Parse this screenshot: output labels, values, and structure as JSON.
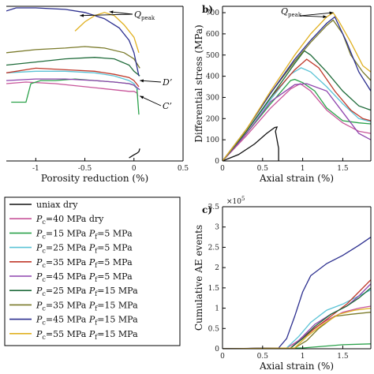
{
  "chart_data": [
    {
      "id": "a",
      "type": "line",
      "panel_label": "",
      "xlabel": "Porosity reduction (%)",
      "ylabel": "",
      "xlim": [
        -1.3,
        0.5
      ],
      "ylim": [
        0,
        1
      ],
      "xticks": [
        -1,
        -0.5,
        0,
        0.5
      ],
      "xtick_labels": [
        "-1",
        "-0.5",
        "0",
        "0.5"
      ],
      "grid": false,
      "annotations": [
        {
          "text": "Q",
          "sub": "peak"
        },
        {
          "text": "D’"
        },
        {
          "text": "C’"
        }
      ],
      "series": [
        {
          "name": "uniax dry",
          "color": "#111111",
          "x": [
            -0.05,
            0,
            0.03,
            0.05,
            0.06
          ],
          "y": [
            0.02,
            0.04,
            0.05,
            0.06,
            0.08
          ]
        },
        {
          "name": "Pc=40 MPa dry",
          "color": "#c8559a",
          "x": [
            -1.3,
            -1.1,
            -0.8,
            -0.5,
            -0.2,
            -0.05,
            0,
            0.03,
            0.04
          ],
          "y": [
            0.5,
            0.51,
            0.5,
            0.48,
            0.46,
            0.45,
            0.45,
            0.44,
            0.42
          ]
        },
        {
          "name": "Pc=15 MPa Pf=5 MPa",
          "color": "#2aa14a",
          "x": [
            -1.25,
            -1.1,
            -1.05,
            -0.95,
            -0.8,
            -0.6,
            -0.4,
            -0.2,
            -0.05,
            0,
            0.03,
            0.05
          ],
          "y": [
            0.38,
            0.38,
            0.5,
            0.52,
            0.52,
            0.53,
            0.52,
            0.51,
            0.5,
            0.49,
            0.47,
            0.3
          ]
        },
        {
          "name": "Pc=25 MPa Pf=5 MPa",
          "color": "#5bc3d6",
          "x": [
            -1.3,
            -1.0,
            -0.7,
            -0.4,
            -0.2,
            -0.05,
            0,
            0.04
          ],
          "y": [
            0.57,
            0.58,
            0.58,
            0.57,
            0.55,
            0.52,
            0.5,
            0.46
          ]
        },
        {
          "name": "Pc=35 MPa Pf=5 MPa",
          "color": "#c0392b",
          "x": [
            -1.3,
            -1.0,
            -0.7,
            -0.4,
            -0.2,
            -0.05,
            0,
            0.05
          ],
          "y": [
            0.57,
            0.6,
            0.59,
            0.58,
            0.56,
            0.54,
            0.52,
            0.48
          ]
        },
        {
          "name": "Pc=45 MPa Pf=5 MPa",
          "color": "#8e44ad",
          "x": [
            -1.3,
            -1.0,
            -0.7,
            -0.4,
            -0.2,
            -0.05,
            0,
            0.06
          ],
          "y": [
            0.52,
            0.53,
            0.53,
            0.52,
            0.51,
            0.5,
            0.49,
            0.46
          ]
        },
        {
          "name": "Pc=25 MPa Pf=15 MPa",
          "color": "#1f6b3a",
          "x": [
            -1.3,
            -1.0,
            -0.7,
            -0.4,
            -0.2,
            -0.05,
            0,
            0.06
          ],
          "y": [
            0.62,
            0.64,
            0.66,
            0.67,
            0.66,
            0.62,
            0.58,
            0.55
          ]
        },
        {
          "name": "Pc=35 MPa Pf=15 MPa",
          "color": "#7a7a2a",
          "x": [
            -1.3,
            -1.0,
            -0.7,
            -0.5,
            -0.3,
            -0.1,
            0,
            0.06
          ],
          "y": [
            0.7,
            0.72,
            0.73,
            0.74,
            0.73,
            0.7,
            0.66,
            0.6
          ]
        },
        {
          "name": "Pc=45 MPa Pf=15 MPa",
          "color": "#2c2f8f",
          "x": [
            -1.3,
            -1.2,
            -1.0,
            -0.7,
            -0.5,
            -0.3,
            -0.15,
            -0.05,
            0,
            0.05
          ],
          "y": [
            0.97,
            0.99,
            0.99,
            0.98,
            0.96,
            0.92,
            0.86,
            0.78,
            0.7,
            0.55
          ]
        },
        {
          "name": "Pc=55 MPa Pf=15 MPa",
          "color": "#e0b020",
          "x": [
            -0.6,
            -0.5,
            -0.4,
            -0.3,
            -0.2,
            -0.1,
            0,
            0.05
          ],
          "y": [
            0.84,
            0.9,
            0.94,
            0.96,
            0.94,
            0.88,
            0.8,
            0.7
          ]
        }
      ]
    },
    {
      "id": "b",
      "type": "line",
      "panel_label": "b)",
      "xlabel": "Axial strain (%)",
      "ylabel": "Differential stress (MPa)",
      "xlim": [
        0,
        1.85
      ],
      "ylim": [
        0,
        730
      ],
      "xticks": [
        0,
        0.5,
        1,
        1.5
      ],
      "xtick_labels": [
        "0",
        "0.5",
        "1",
        "1.5"
      ],
      "yticks": [
        0,
        100,
        200,
        300,
        400,
        500,
        600,
        700
      ],
      "grid": false,
      "annotations": [
        {
          "text": "Q",
          "sub": "peak"
        }
      ],
      "series": [
        {
          "name": "uniax dry",
          "color": "#111111",
          "x": [
            0,
            0.2,
            0.4,
            0.55,
            0.65,
            0.68,
            0.66,
            0.7,
            0.7
          ],
          "y": [
            0,
            30,
            80,
            130,
            158,
            160,
            140,
            60,
            0
          ]
        },
        {
          "name": "Pc=40 MPa dry",
          "color": "#c8559a",
          "x": [
            0,
            0.3,
            0.6,
            0.85,
            0.97,
            1.1,
            1.3,
            1.5,
            1.7,
            1.85
          ],
          "y": [
            0,
            120,
            250,
            340,
            365,
            330,
            240,
            180,
            140,
            130
          ]
        },
        {
          "name": "Pc=15 MPa Pf=5 MPa",
          "color": "#2aa14a",
          "x": [
            0,
            0.3,
            0.6,
            0.85,
            0.9,
            1.0,
            1.15,
            1.3,
            1.5,
            1.7,
            1.85
          ],
          "y": [
            0,
            130,
            270,
            380,
            385,
            370,
            330,
            250,
            190,
            180,
            175
          ]
        },
        {
          "name": "Pc=25 MPa Pf=5 MPa",
          "color": "#5bc3d6",
          "x": [
            0,
            0.3,
            0.6,
            0.85,
            0.98,
            1.1,
            1.3,
            1.5,
            1.7,
            1.85
          ],
          "y": [
            0,
            140,
            290,
            410,
            440,
            420,
            350,
            270,
            200,
            185
          ]
        },
        {
          "name": "Pc=35 MPa Pf=5 MPa",
          "color": "#c0392b",
          "x": [
            0,
            0.3,
            0.6,
            0.9,
            1.05,
            1.2,
            1.4,
            1.6,
            1.75,
            1.85
          ],
          "y": [
            0,
            140,
            300,
            430,
            480,
            440,
            330,
            240,
            200,
            190
          ]
        },
        {
          "name": "Pc=45 MPa Pf=5 MPa",
          "color": "#8e44ad",
          "x": [
            0,
            0.3,
            0.6,
            0.9,
            1.05,
            1.3,
            1.5,
            1.7,
            1.85
          ],
          "y": [
            0,
            130,
            280,
            360,
            365,
            330,
            230,
            130,
            100
          ]
        },
        {
          "name": "Pc=25 MPa Pf=15 MPa",
          "color": "#1f6b3a",
          "x": [
            0,
            0.3,
            0.6,
            0.9,
            1.02,
            1.1,
            1.3,
            1.5,
            1.7,
            1.85
          ],
          "y": [
            0,
            140,
            300,
            460,
            520,
            500,
            420,
            330,
            260,
            240
          ]
        },
        {
          "name": "Pc=35 MPa Pf=15 MPa",
          "color": "#7a7a2a",
          "x": [
            0,
            0.3,
            0.6,
            0.9,
            1.1,
            1.3,
            1.38,
            1.5,
            1.6,
            1.75,
            1.85
          ],
          "y": [
            0,
            150,
            320,
            470,
            560,
            640,
            665,
            600,
            500,
            420,
            380
          ]
        },
        {
          "name": "Pc=45 MPa Pf=15 MPa",
          "color": "#2c2f8f",
          "x": [
            0,
            0.3,
            0.6,
            0.9,
            1.1,
            1.3,
            1.4,
            1.55,
            1.7,
            1.85
          ],
          "y": [
            0,
            150,
            320,
            480,
            570,
            650,
            680,
            560,
            420,
            330
          ]
        },
        {
          "name": "Pc=55 MPa Pf=15 MPa",
          "color": "#e0b020",
          "x": [
            0,
            0.3,
            0.6,
            0.9,
            1.1,
            1.3,
            1.38,
            1.45,
            1.6,
            1.75,
            1.85
          ],
          "y": [
            0,
            150,
            330,
            500,
            600,
            680,
            700,
            660,
            560,
            450,
            420
          ]
        }
      ]
    },
    {
      "id": "c",
      "type": "line",
      "panel_label": "c)",
      "xlabel": "Axial strain (%)",
      "ylabel": "Cumulative AE events",
      "exponent_label": "×10",
      "exponent_power": "5",
      "xlim": [
        0,
        1.85
      ],
      "ylim": [
        0,
        3.5
      ],
      "xticks": [
        0,
        0.5,
        1,
        1.5
      ],
      "xtick_labels": [
        "0",
        "0.5",
        "1",
        "1.5"
      ],
      "yticks": [
        0,
        0.5,
        1,
        1.5,
        2,
        2.5,
        3,
        3.5
      ],
      "grid": false,
      "series": [
        {
          "name": "uniax dry",
          "color": "#111111",
          "x": [
            0,
            0.6,
            0.7
          ],
          "y": [
            0,
            0.01,
            0.01
          ]
        },
        {
          "name": "Pc=40 MPa dry",
          "color": "#c8559a",
          "x": [
            0,
            0.8,
            0.95,
            1.1,
            1.3,
            1.5,
            1.7,
            1.85
          ],
          "y": [
            0,
            0.02,
            0.2,
            0.45,
            0.7,
            0.9,
            1.0,
            1.05
          ]
        },
        {
          "name": "Pc=15 MPa Pf=5 MPa",
          "color": "#2aa14a",
          "x": [
            0,
            1.0,
            1.2,
            1.5,
            1.85
          ],
          "y": [
            0,
            0.02,
            0.05,
            0.1,
            0.12
          ]
        },
        {
          "name": "Pc=25 MPa Pf=5 MPa",
          "color": "#5bc3d6",
          "x": [
            0,
            0.8,
            0.95,
            1.1,
            1.3,
            1.5,
            1.7,
            1.85
          ],
          "y": [
            0,
            0.02,
            0.3,
            0.65,
            0.95,
            1.1,
            1.3,
            1.45
          ]
        },
        {
          "name": "Pc=35 MPa Pf=5 MPa",
          "color": "#c0392b",
          "x": [
            0,
            0.85,
            1.0,
            1.15,
            1.35,
            1.55,
            1.7,
            1.85
          ],
          "y": [
            0,
            0.02,
            0.25,
            0.5,
            0.8,
            1.1,
            1.4,
            1.7
          ]
        },
        {
          "name": "Pc=45 MPa Pf=5 MPa",
          "color": "#8e44ad",
          "x": [
            0,
            0.85,
            1.0,
            1.15,
            1.35,
            1.55,
            1.7,
            1.85
          ],
          "y": [
            0,
            0.02,
            0.3,
            0.6,
            0.85,
            1.05,
            1.3,
            1.6
          ]
        },
        {
          "name": "Pc=25 MPa Pf=15 MPa",
          "color": "#1f6b3a",
          "x": [
            0,
            0.85,
            1.0,
            1.15,
            1.35,
            1.55,
            1.7,
            1.85
          ],
          "y": [
            0,
            0.02,
            0.25,
            0.55,
            0.85,
            1.05,
            1.25,
            1.5
          ]
        },
        {
          "name": "Pc=35 MPa Pf=15 MPa",
          "color": "#7a7a2a",
          "x": [
            0,
            0.9,
            1.05,
            1.2,
            1.4,
            1.6,
            1.85
          ],
          "y": [
            0,
            0.02,
            0.2,
            0.5,
            0.8,
            0.85,
            0.9
          ]
        },
        {
          "name": "Pc=45 MPa Pf=15 MPa",
          "color": "#2c2f8f",
          "x": [
            0,
            0.7,
            0.8,
            0.9,
            1.0,
            1.1,
            1.3,
            1.5,
            1.7,
            1.85
          ],
          "y": [
            0,
            0.02,
            0.25,
            0.8,
            1.4,
            1.8,
            2.1,
            2.3,
            2.55,
            2.75
          ]
        },
        {
          "name": "Pc=55 MPa Pf=15 MPa",
          "color": "#e0b020",
          "x": [
            0,
            0.9,
            1.05,
            1.25,
            1.45,
            1.65,
            1.85
          ],
          "y": [
            0,
            0.02,
            0.3,
            0.6,
            0.85,
            0.95,
            1.0
          ]
        }
      ]
    }
  ],
  "legend": {
    "placement": "bottom-left",
    "entries": [
      {
        "color": "#111111",
        "parts": [
          "uniax dry"
        ]
      },
      {
        "color": "#c8559a",
        "parts": [
          "P",
          "c",
          "=40 MPa dry"
        ]
      },
      {
        "color": "#2aa14a",
        "parts": [
          "P",
          "c",
          "=15 MPa ",
          "P",
          "f",
          "=5 MPa"
        ]
      },
      {
        "color": "#5bc3d6",
        "parts": [
          "P",
          "c",
          "=25 MPa ",
          "P",
          "f",
          "=5 MPa"
        ]
      },
      {
        "color": "#c0392b",
        "parts": [
          "P",
          "c",
          "=35 MPa ",
          "P",
          "f",
          "=5 MPa"
        ]
      },
      {
        "color": "#8e44ad",
        "parts": [
          "P",
          "c",
          "=45 MPa ",
          "P",
          "f",
          "=5 MPa"
        ]
      },
      {
        "color": "#1f6b3a",
        "parts": [
          "P",
          "c",
          "=25 MPa ",
          "P",
          "f",
          "=15 MPa"
        ]
      },
      {
        "color": "#7a7a2a",
        "parts": [
          "P",
          "c",
          "=35 MPa ",
          "P",
          "f",
          "=15 MPa"
        ]
      },
      {
        "color": "#2c2f8f",
        "parts": [
          "P",
          "c",
          "=45 MPa ",
          "P",
          "f",
          "=15 MPa"
        ]
      },
      {
        "color": "#e0b020",
        "parts": [
          "P",
          "c",
          "=55 MPa ",
          "P",
          "f",
          "=15 MPa"
        ]
      }
    ]
  }
}
